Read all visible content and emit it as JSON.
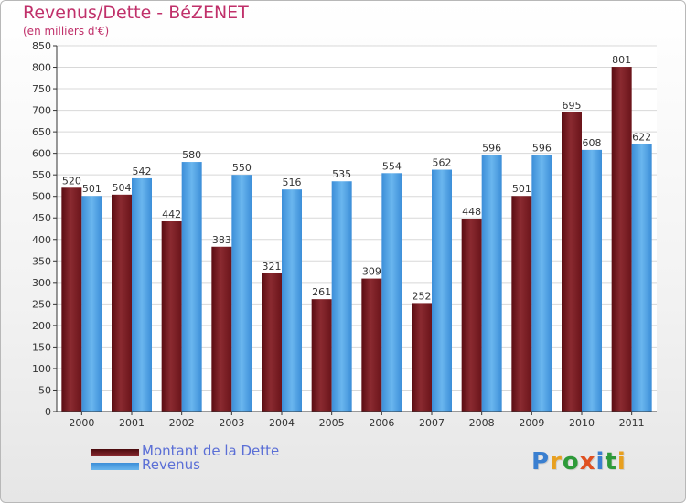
{
  "title": "Revenus/Dette - BéZENET",
  "subtitle": "(en milliers d'€)",
  "colors": {
    "dette": "#7a1e24",
    "revenus": "#4a9ee0",
    "title": "#c0306a",
    "legend_text": "#5b6fd6"
  },
  "logo": {
    "text": "Proxiti",
    "letter_colors": [
      "#3a7fd0",
      "#e8a020",
      "#2e9a3a",
      "#e05020",
      "#3a7fd0",
      "#2e9a3a",
      "#e8a020"
    ]
  },
  "chart_data": {
    "type": "bar",
    "categories": [
      "2000",
      "2001",
      "2002",
      "2003",
      "2004",
      "2005",
      "2006",
      "2007",
      "2008",
      "2009",
      "2010",
      "2011"
    ],
    "series": [
      {
        "name": "Montant de la Dette",
        "values": [
          520,
          504,
          442,
          383,
          321,
          261,
          309,
          252,
          448,
          501,
          695,
          801
        ]
      },
      {
        "name": "Revenus",
        "values": [
          501,
          542,
          580,
          550,
          516,
          535,
          554,
          562,
          596,
          596,
          608,
          622
        ]
      }
    ],
    "title": "Revenus/Dette - BéZENET",
    "subtitle": "(en milliers d'€)",
    "ylim": [
      0,
      850
    ],
    "ytick_step": 50,
    "grid": true,
    "legend": "bottom-left"
  }
}
